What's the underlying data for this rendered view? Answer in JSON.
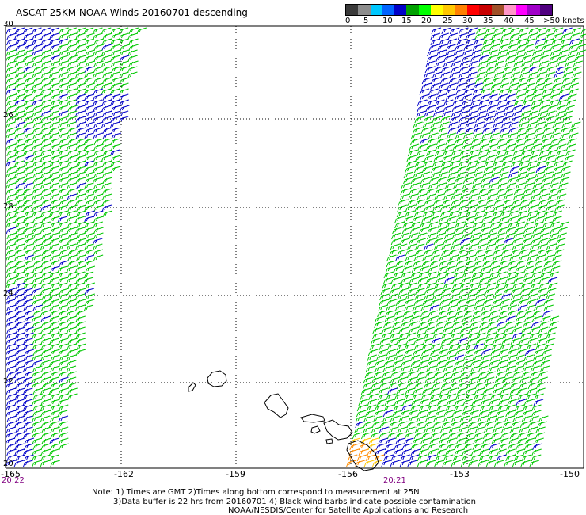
{
  "title": "ASCAT 25KM NOAA Winds 20160701 descending",
  "colorbar": {
    "labels": [
      "0",
      "5",
      "10",
      "15",
      "20",
      "25",
      "30",
      "35",
      "40",
      "45",
      ">50 knots"
    ],
    "colors": [
      "#3a3a3a",
      "#8c8c8c",
      "#00c8ff",
      "#0064ff",
      "#0000c8",
      "#00a000",
      "#00ff00",
      "#ffff00",
      "#ffc800",
      "#ff8000",
      "#ff0000",
      "#c80000",
      "#a05028",
      "#ff96c8",
      "#ff00ff",
      "#a000c8",
      "#500080"
    ]
  },
  "map": {
    "lat_labels": [
      "30",
      "28",
      "26",
      "24",
      "22",
      "20"
    ],
    "lon_labels": [
      "-165",
      "-162",
      "-159",
      "-156",
      "-153",
      "-150"
    ],
    "lat_range": [
      20,
      30
    ],
    "lon_range": [
      -165,
      -150
    ],
    "grid": "dotted",
    "wind_colors": {
      "low": "#0000c8",
      "mid": "#00c800",
      "high": "#ff8c00",
      "higher": "#ffc800"
    }
  },
  "times": [
    "20:22",
    "20:21"
  ],
  "notes": [
    "Note: 1) Times are GMT 2)Times along bottom correspond to measurement at 25N",
    "3)Data buffer is 22 hrs from 20160701 4) Black wind barbs indicate possible contamination",
    "NOAA/NESDIS/Center for Satellite Applications and Research"
  ]
}
